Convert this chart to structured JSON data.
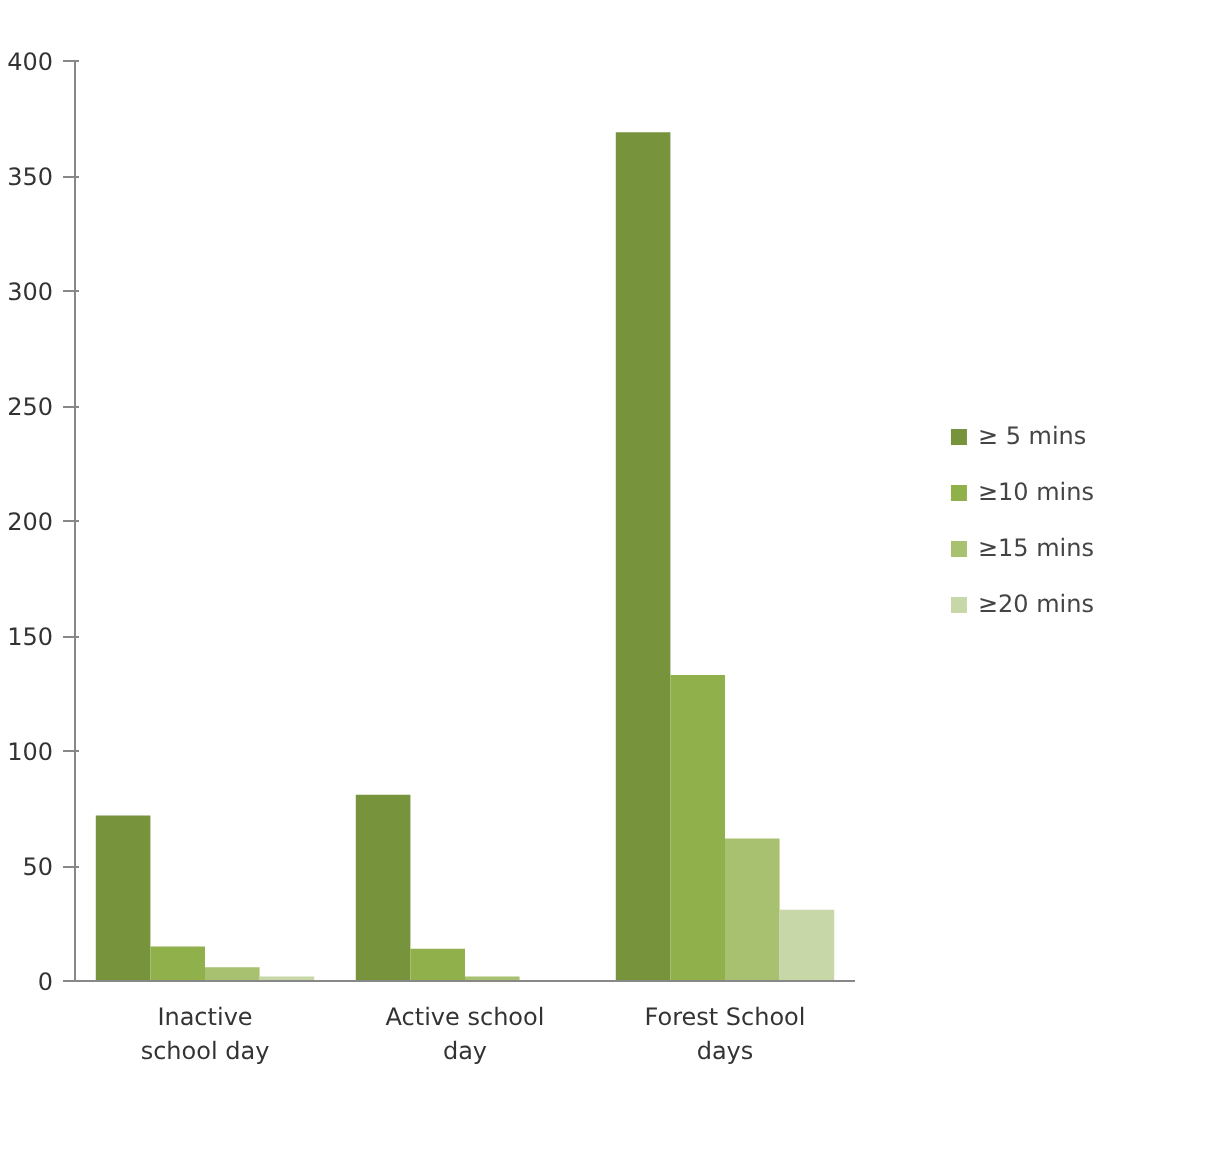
{
  "chart_data": {
    "type": "bar",
    "categories": [
      "Inactive school day",
      "Active school day",
      "Forest School days"
    ],
    "series": [
      {
        "name": "≥ 5 mins",
        "color": "#77933c",
        "values": [
          72,
          81,
          369
        ]
      },
      {
        "name": "≥10 mins",
        "color": "#8fb04a",
        "values": [
          15,
          14,
          133
        ]
      },
      {
        "name": "≥15 mins",
        "color": "#a7c170",
        "values": [
          6,
          2,
          62
        ]
      },
      {
        "name": "≥20 mins",
        "color": "#c8d7a8",
        "values": [
          2,
          0,
          31
        ]
      }
    ],
    "ylim": [
      0,
      400
    ],
    "yticks": [
      0,
      50,
      100,
      150,
      200,
      250,
      300,
      350,
      400
    ],
    "legend": "right"
  }
}
